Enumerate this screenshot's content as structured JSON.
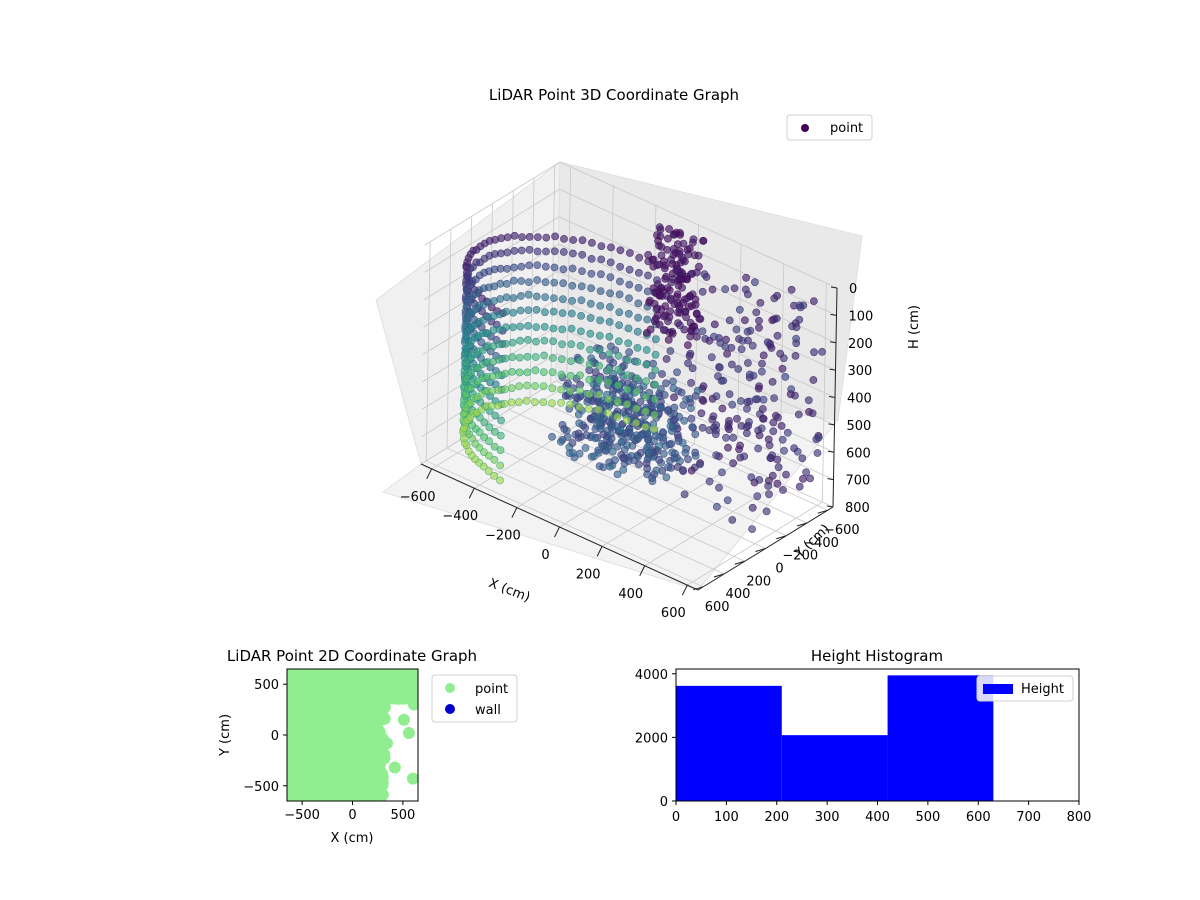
{
  "chart_data": [
    {
      "type": "scatter",
      "projection": "3d",
      "title": "LiDAR Point 3D Coordinate Graph",
      "xlabel": "X (cm)",
      "ylabel": "Y (cm)",
      "zlabel": "H (cm)",
      "xlim": [
        -650,
        650
      ],
      "ylim": [
        -650,
        650
      ],
      "zlim": [
        800,
        0
      ],
      "x_ticks": [
        "−600",
        "−400",
        "−200",
        "0",
        "200",
        "400",
        "600"
      ],
      "y_ticks": [
        "−600",
        "−400",
        "−200",
        "0",
        "200",
        "400",
        "600"
      ],
      "z_ticks": [
        "0",
        "100",
        "200",
        "300",
        "400",
        "500",
        "600",
        "700",
        "800"
      ],
      "grid": true,
      "legend": {
        "placement": "top-right",
        "entries": [
          {
            "label": "point",
            "color": "#440154"
          }
        ]
      },
      "colormap": "viridis",
      "series": [
        {
          "name": "point",
          "description_shape": "curved wall sweeping from rear-left to front, plus scattered points at right"
        }
      ]
    },
    {
      "type": "scatter",
      "title": "LiDAR Point 2D Coordinate Graph",
      "xlabel": "X (cm)",
      "ylabel": "Y (cm)",
      "xlim": [
        -650,
        650
      ],
      "ylim": [
        -650,
        650
      ],
      "x_ticks": [
        "−500",
        "0",
        "500"
      ],
      "y_ticks": [
        "−500",
        "0",
        "500"
      ],
      "legend": {
        "placement": "outside-right",
        "entries": [
          {
            "label": "point",
            "color": "#90ee90"
          },
          {
            "label": "wall",
            "color": "#0000cd"
          }
        ]
      }
    },
    {
      "type": "bar",
      "subtype": "histogram",
      "title": "Height Histogram",
      "xlim": [
        0,
        800
      ],
      "ylim": [
        0,
        4150
      ],
      "x_ticks": [
        "0",
        "100",
        "200",
        "300",
        "400",
        "500",
        "600",
        "700",
        "800"
      ],
      "y_ticks": [
        "0",
        "2000",
        "4000"
      ],
      "bins": [
        {
          "x0": 0,
          "x1": 210,
          "count": 3620
        },
        {
          "x0": 210,
          "x1": 420,
          "count": 2070
        },
        {
          "x0": 420,
          "x1": 630,
          "count": 3950
        }
      ],
      "bar_color": "#0000ff",
      "legend": {
        "placement": "top-right",
        "entries": [
          {
            "label": "Height",
            "color": "#0000ff"
          }
        ]
      }
    }
  ]
}
